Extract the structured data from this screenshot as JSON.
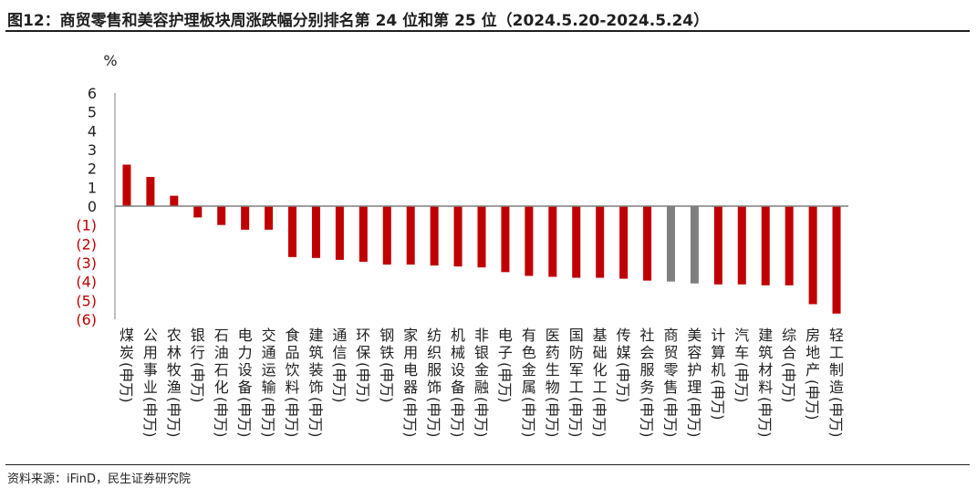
{
  "title": "图12：商贸零售和美容护理板块周涨跌幅分别排名第 24 位和第 25 位（2024.5.20-2024.5.24）",
  "source": "资料来源：iFinD，民生证券研究院",
  "chart_data": {
    "type": "bar",
    "ylabel": "%",
    "ylim": [
      -6,
      6
    ],
    "yticks": [
      6,
      5,
      4,
      3,
      2,
      1,
      0,
      -1,
      -2,
      -3,
      -4,
      -5,
      -6
    ],
    "ytick_labels": [
      "6",
      "5",
      "4",
      "3",
      "2",
      "1",
      "0",
      "(1)",
      "(2)",
      "(3)",
      "(4)",
      "(5)",
      "(6)"
    ],
    "categories": [
      "煤炭(申万)",
      "公用事业(申万)",
      "农林牧渔(申万)",
      "银行(申万)",
      "石油石化(申万)",
      "电力设备(申万)",
      "交通运输(申万)",
      "食品饮料(申万)",
      "建筑装饰(申万)",
      "通信(申万)",
      "环保(申万)",
      "钢铁(申万)",
      "家用电器(申万)",
      "纺织服饰(申万)",
      "机械设备(申万)",
      "非银金融(申万)",
      "电子(申万)",
      "有色金属(申万)",
      "医药生物(申万)",
      "国防军工(申万)",
      "基础化工(申万)",
      "传媒(申万)",
      "社会服务(申万)",
      "商贸零售(申万)",
      "美容护理(申万)",
      "计算机(申万)",
      "汽车(申万)",
      "建筑材料(申万)",
      "综合(申万)",
      "房地产(申万)",
      "轻工制造(申万)"
    ],
    "values": [
      2.2,
      1.55,
      0.55,
      -0.6,
      -1.0,
      -1.25,
      -1.25,
      -2.7,
      -2.75,
      -2.85,
      -2.95,
      -3.1,
      -3.1,
      -3.15,
      -3.2,
      -3.25,
      -3.5,
      -3.7,
      -3.75,
      -3.8,
      -3.8,
      -3.85,
      -3.95,
      -4.0,
      -4.1,
      -4.15,
      -4.15,
      -4.2,
      -4.2,
      -5.2,
      -5.7
    ],
    "highlight": [
      "商贸零售(申万)",
      "美容护理(申万)"
    ],
    "colors": {
      "bar": "#C00000",
      "highlight": "#7F7F7F",
      "negative_tick": "#C00000",
      "positive_tick": "#222222",
      "axis": "#7F7F7F"
    },
    "grid": false,
    "legend": "none"
  }
}
